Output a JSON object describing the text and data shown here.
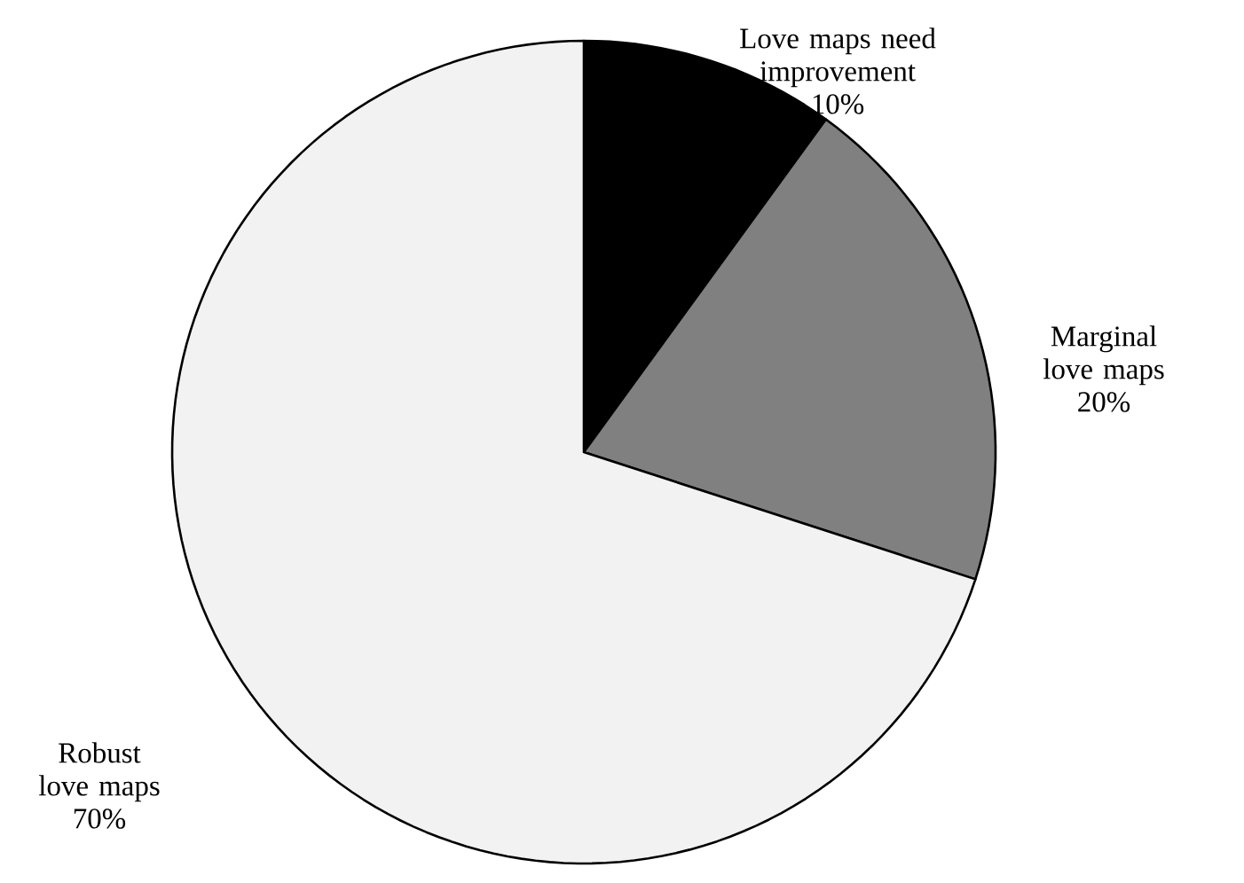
{
  "chart_data": {
    "type": "pie",
    "categories": [
      "Love maps need improvement",
      "Marginal love maps",
      "Robust love maps"
    ],
    "values": [
      10,
      20,
      70
    ],
    "value_labels": [
      "10%",
      "20%",
      "70%"
    ],
    "colors": [
      "#000000",
      "#808080",
      "#f2f2f2"
    ]
  }
}
